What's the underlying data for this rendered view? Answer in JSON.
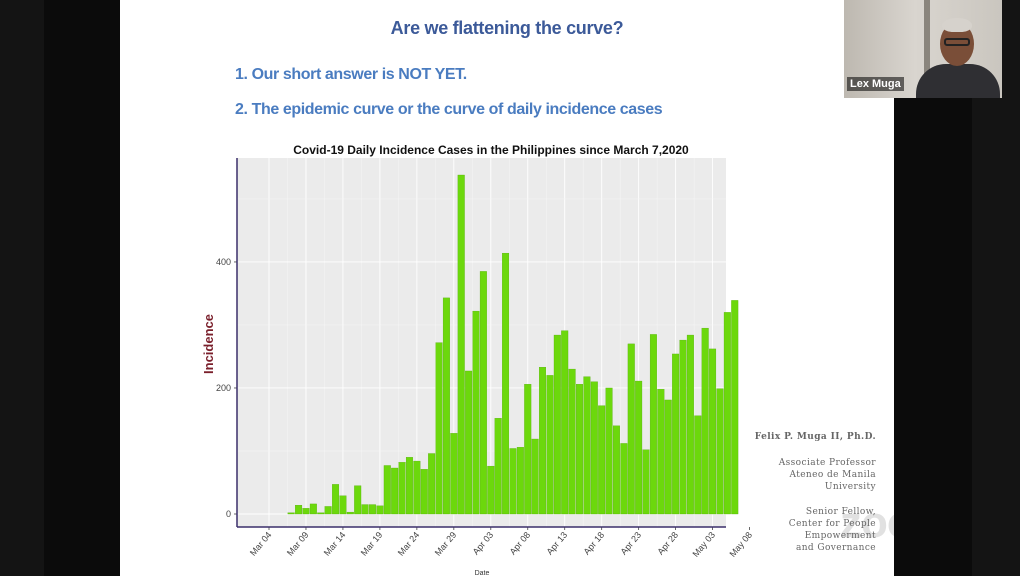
{
  "slide": {
    "title": "Are we flattening the curve?",
    "points": [
      "1.  Our short answer is NOT YET.",
      "2.  The epidemic curve or the curve of daily incidence  cases"
    ],
    "credit": {
      "name": "Felix  P. Muga II, Ph.D.",
      "role_lines": [
        "Associate Professor",
        "Ateneo de Manila",
        "University"
      ],
      "fellow_lines": [
        "Senior Fellow,",
        "Center for People",
        "Empowerment",
        "and Governance"
      ]
    }
  },
  "app": {
    "watermark": "zoom",
    "participant": {
      "name": "Lex Muga"
    }
  },
  "colors": {
    "title": "#3c5a99",
    "points": "#4a7cc0",
    "bar": "#6cd80c",
    "bar_edge": "#4fa806",
    "panel": "#ebebeb",
    "ylabel": "#7a1f2b"
  },
  "chart_data": {
    "type": "bar",
    "title": "Covid-19 Daily Incidence Cases in the Philippines since March 7,2020",
    "xlabel": "Date",
    "ylabel": "Incidence",
    "x_ticks": [
      "Mar 04",
      "Mar 09",
      "Mar 14",
      "Mar 19",
      "Mar 24",
      "Mar 29",
      "Apr 03",
      "Apr 08",
      "Apr 13",
      "Apr 18",
      "Apr 23",
      "Apr 28",
      "May 03",
      "May 08"
    ],
    "y_ticks": [
      0,
      200,
      400
    ],
    "ylim": [
      0,
      560
    ],
    "grid": true,
    "start_date": "Mar 07",
    "values": [
      2,
      14,
      9,
      16,
      2,
      12,
      47,
      29,
      3,
      45,
      15,
      15,
      13,
      77,
      73,
      82,
      90,
      84,
      71,
      96,
      272,
      343,
      128,
      538,
      227,
      322,
      385,
      76,
      152,
      414,
      104,
      106,
      206,
      119,
      233,
      220,
      284,
      291,
      230,
      206,
      218,
      210,
      172,
      200,
      140,
      112,
      270,
      211,
      102,
      285,
      198,
      181,
      254,
      276,
      284,
      156,
      295,
      262,
      199,
      320,
      339
    ]
  }
}
